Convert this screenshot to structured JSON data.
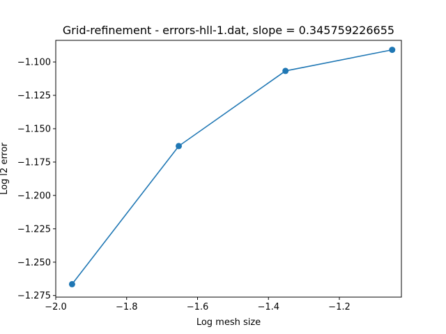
{
  "chart_data": {
    "type": "line",
    "title": "Grid-refinement - errors-hll-1.dat, slope = 0.345759226655",
    "xlabel": "Log mesh size",
    "ylabel": "Log l2 error",
    "xlim": [
      -2.0,
      -1.025
    ],
    "ylim": [
      -1.2762,
      -1.0838
    ],
    "xticks": [
      -2.0,
      -1.8,
      -1.6,
      -1.4,
      -1.2
    ],
    "xtick_labels": [
      "−2.0",
      "−1.8",
      "−1.6",
      "−1.4",
      "−1.2"
    ],
    "yticks": [
      -1.1,
      -1.125,
      -1.15,
      -1.175,
      -1.2,
      -1.225,
      -1.25,
      -1.275
    ],
    "ytick_labels": [
      "−1.100",
      "−1.125",
      "−1.150",
      "−1.175",
      "−1.200",
      "−1.225",
      "−1.250",
      "−1.275"
    ],
    "grid": false,
    "series": [
      {
        "color": "#1f77b4",
        "marker": "circle",
        "x": [
          -1.954,
          -1.653,
          -1.352,
          -1.051
        ],
        "y": [
          -1.2665,
          -1.163,
          -1.1067,
          -1.0909
        ]
      }
    ]
  }
}
